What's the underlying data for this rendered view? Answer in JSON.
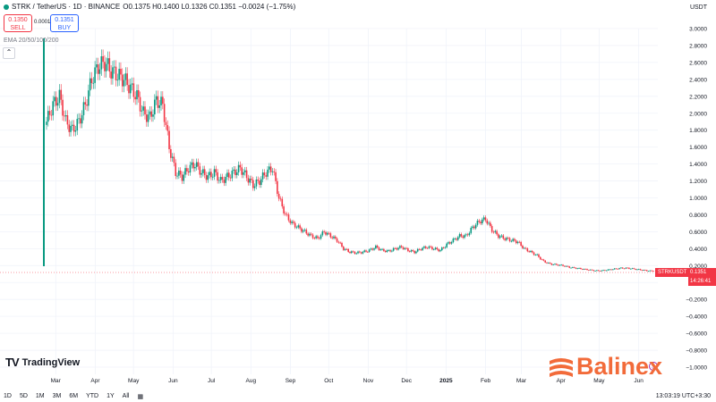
{
  "header": {
    "symbol": "STRK / TetherUS · 1D · BINANCE",
    "ohlc": "O0.1375 H0.1400 L0.1326 C0.1351 −0.0024 (−1.75%)",
    "status_color": "#089981"
  },
  "trade": {
    "sell_price": "0.1350",
    "sell_label": "SELL",
    "spread": "0.0001",
    "buy_price": "0.1351",
    "buy_label": "BUY"
  },
  "indicator": "EMA 20/50/100/200",
  "collapse_icon": "chevron-up-icon",
  "currency": "USDT",
  "timeframes": [
    "1D",
    "5D",
    "1M",
    "3M",
    "6M",
    "YTD",
    "1Y",
    "All"
  ],
  "calendar_icon": "calendar-icon",
  "clock": "13:03:19 UTC+3:30",
  "tv_logo": "TradingView",
  "brand": "Balinex",
  "price_tag": {
    "ticker": "STRKUSDT",
    "price": "0.1351",
    "countdown": "14:26:41"
  },
  "colors": {
    "up": "#089981",
    "down": "#f23645",
    "brand": "#f26b3a"
  },
  "chart_data": {
    "type": "candlestick",
    "y_ticks": [
      "3.0000",
      "2.8000",
      "2.6000",
      "2.4000",
      "2.2000",
      "2.0000",
      "1.8000",
      "1.6000",
      "1.4000",
      "1.2000",
      "1.0000",
      "0.8000",
      "0.6000",
      "0.4000",
      "0.2000",
      "0.0000",
      "−0.2000",
      "−0.4000",
      "−0.6000",
      "−0.8000",
      "−1.0000"
    ],
    "ylim": [
      -1.0,
      3.0
    ],
    "x_ticks": [
      "Mar",
      "Apr",
      "May",
      "Jun",
      "Jul",
      "Aug",
      "Sep",
      "Oct",
      "Nov",
      "Dec",
      "2025",
      "Feb",
      "Mar",
      "Apr",
      "May",
      "Jun"
    ],
    "x_start": "2024-02-20",
    "x_tick_dates": [
      "2024-03-01",
      "2024-04-01",
      "2024-05-01",
      "2024-06-01",
      "2024-07-01",
      "2024-08-01",
      "2024-09-01",
      "2024-10-01",
      "2024-11-01",
      "2024-12-01",
      "2025-01-01",
      "2025-02-01",
      "2025-03-01",
      "2025-04-01",
      "2025-05-01",
      "2025-06-01"
    ],
    "series": [
      {
        "values": [
          1.9,
          2.1,
          2.2,
          1.9,
          1.8,
          1.9,
          2.1,
          2.4,
          2.55,
          2.6,
          2.5,
          2.45,
          2.4,
          2.3,
          2.2,
          2.0,
          1.95,
          2.15,
          2.1,
          1.6,
          1.3,
          1.25,
          1.35,
          1.4,
          1.3,
          1.25,
          1.3,
          1.2,
          1.25,
          1.3,
          1.35,
          1.25,
          1.15,
          1.2,
          1.3,
          1.35,
          1.0,
          0.8,
          0.7,
          0.65,
          0.6,
          0.55,
          0.52,
          0.6,
          0.55,
          0.5,
          0.4,
          0.36,
          0.35,
          0.36,
          0.38,
          0.42,
          0.38,
          0.37,
          0.4,
          0.42,
          0.38,
          0.36,
          0.4,
          0.42,
          0.4,
          0.38,
          0.45,
          0.5,
          0.55,
          0.55,
          0.65,
          0.72,
          0.75,
          0.62,
          0.55,
          0.52,
          0.5,
          0.48,
          0.4,
          0.36,
          0.32,
          0.25,
          0.22,
          0.21,
          0.2,
          0.18,
          0.17,
          0.16,
          0.15,
          0.14,
          0.14,
          0.15,
          0.16,
          0.17,
          0.17,
          0.16,
          0.15,
          0.14,
          0.1351
        ]
      }
    ]
  }
}
